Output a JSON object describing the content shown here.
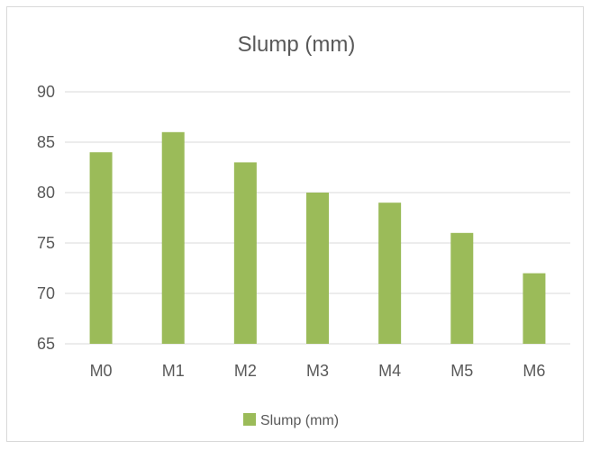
{
  "chart_data": {
    "type": "bar",
    "title": "Slump (mm)",
    "categories": [
      "M0",
      "M1",
      "M2",
      "M3",
      "M4",
      "M5",
      "M6"
    ],
    "series": [
      {
        "name": "Slump (mm)",
        "values": [
          84,
          86,
          83,
          80,
          79,
          76,
          72
        ],
        "color": "#9bbb59"
      }
    ],
    "xlabel": "",
    "ylabel": "",
    "ylim": [
      65,
      90
    ],
    "yticks": [
      "65",
      "70",
      "75",
      "80",
      "85",
      "90"
    ],
    "grid": true,
    "legend": "bottom"
  },
  "colors": {
    "bar": "#9bbb59",
    "grid": "#d9d9d9",
    "text": "#595959",
    "border": "#d9d9d9"
  }
}
